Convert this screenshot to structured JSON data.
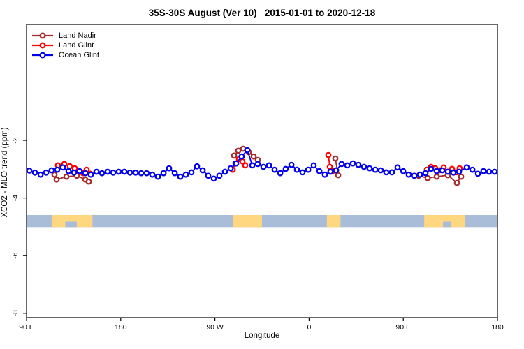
{
  "chart_data": {
    "type": "line",
    "title": "35S-30S August (Ver 10)   2015-01-01 to 2020-12-18",
    "xlabel": "Longitude",
    "ylabel": "XCO2 - MLO trend (ppm)",
    "marker": "open-circle",
    "x_axis": {
      "range": [
        0,
        450
      ],
      "note": "axis position in degrees east of 90E; longitude axis wraps around the globe",
      "ticks": [
        {
          "pos": 0,
          "label": "90 E"
        },
        {
          "pos": 90,
          "label": "180"
        },
        {
          "pos": 180,
          "label": "90 W"
        },
        {
          "pos": 270,
          "label": "0"
        },
        {
          "pos": 360,
          "label": "90 E"
        },
        {
          "pos": 450,
          "label": "180"
        }
      ]
    },
    "y_axis": {
      "range": [
        -8.15,
        2.02
      ],
      "ticks": [
        -2,
        -4,
        -6,
        -8
      ]
    },
    "series": [
      {
        "name": "Land Nadir",
        "color": "#A52A2A",
        "segments": [
          [
            [
              26.7,
              -3.19
            ],
            [
              28.7,
              -3.36
            ],
            [
              38.1,
              -3.26
            ],
            [
              48.1,
              -3.23
            ],
            [
              56.1,
              -3.36
            ],
            [
              59.4,
              -3.43
            ]
          ],
          [
            [
              198.3,
              -2.53
            ],
            [
              202.3,
              -2.36
            ],
            [
              207.0,
              -2.29
            ],
            [
              212.3,
              -2.41
            ],
            [
              217.0,
              -2.56
            ],
            [
              221.0,
              -2.68
            ]
          ],
          [
            [
              295.1,
              -2.63
            ],
            [
              297.8,
              -3.21
            ]
          ],
          [
            [
              374.6,
              -3.23
            ],
            [
              383.3,
              -3.31
            ],
            [
              392.0,
              -3.26
            ],
            [
              402.6,
              -3.21
            ],
            [
              411.3,
              -3.48
            ],
            [
              415.3,
              -3.26
            ]
          ]
        ]
      },
      {
        "name": "Land Glint",
        "color": "#FF0000",
        "segments": [
          [
            [
              30.0,
              -2.87
            ],
            [
              36.1,
              -2.82
            ],
            [
              41.4,
              -2.9
            ],
            [
              46.1,
              -2.97
            ],
            [
              50.1,
              -3.09
            ],
            [
              54.1,
              -3.14
            ],
            [
              57.4,
              -3.02
            ],
            [
              60.8,
              -3.16
            ]
          ],
          [
            [
              197.0,
              -3.02
            ],
            [
              199.6,
              -2.8
            ],
            [
              203.0,
              -2.65
            ],
            [
              206.3,
              -2.73
            ],
            [
              209.0,
              -2.87
            ]
          ],
          [
            [
              288.4,
              -2.51
            ],
            [
              289.8,
              -2.92
            ],
            [
              292.4,
              -3.07
            ]
          ],
          [
            [
              382.6,
              -3.02
            ],
            [
              386.6,
              -2.92
            ],
            [
              390.6,
              -2.97
            ],
            [
              394.6,
              -3.04
            ],
            [
              398.6,
              -2.94
            ],
            [
              402.6,
              -3.09
            ],
            [
              406.6,
              -2.99
            ],
            [
              410.6,
              -3.11
            ],
            [
              413.9,
              -2.97
            ]
          ]
        ]
      },
      {
        "name": "Ocean Glint",
        "color": "#0000EE",
        "segments": [
          [
            [
              2.7,
              -3.05
            ],
            [
              8.0,
              -3.12
            ],
            [
              13.4,
              -3.19
            ],
            [
              18.7,
              -3.12
            ],
            [
              24.0,
              -3.04
            ],
            [
              29.4,
              -3.02
            ],
            [
              34.7,
              -2.94
            ],
            [
              40.1,
              -3.07
            ],
            [
              45.4,
              -3.12
            ],
            [
              50.7,
              -3.07
            ],
            [
              56.1,
              -3.14
            ],
            [
              61.4,
              -3.19
            ],
            [
              66.8,
              -3.09
            ],
            [
              72.1,
              -3.14
            ],
            [
              77.5,
              -3.09
            ],
            [
              82.8,
              -3.12
            ],
            [
              88.1,
              -3.09
            ],
            [
              93.5,
              -3.09
            ],
            [
              98.8,
              -3.12
            ],
            [
              104.2,
              -3.12
            ],
            [
              109.5,
              -3.14
            ],
            [
              114.8,
              -3.14
            ],
            [
              120.2,
              -3.19
            ],
            [
              125.5,
              -3.26
            ],
            [
              130.9,
              -3.14
            ],
            [
              136.2,
              -2.97
            ],
            [
              141.6,
              -3.14
            ],
            [
              146.9,
              -3.26
            ],
            [
              152.2,
              -3.19
            ],
            [
              157.6,
              -3.11
            ],
            [
              162.9,
              -2.9
            ],
            [
              168.3,
              -3.04
            ],
            [
              173.6,
              -3.23
            ],
            [
              178.9,
              -3.33
            ],
            [
              184.3,
              -3.23
            ],
            [
              189.6,
              -3.09
            ],
            [
              195.0,
              -2.97
            ],
            [
              200.3,
              -2.8
            ],
            [
              205.6,
              -2.56
            ],
            [
              211.0,
              -2.34
            ],
            [
              215.7,
              -2.87
            ],
            [
              221.0,
              -2.82
            ],
            [
              226.4,
              -2.92
            ],
            [
              231.7,
              -2.87
            ],
            [
              237.0,
              -3.02
            ],
            [
              242.4,
              -3.14
            ],
            [
              247.7,
              -2.99
            ],
            [
              253.1,
              -2.85
            ],
            [
              258.4,
              -3.02
            ],
            [
              263.7,
              -3.11
            ],
            [
              269.1,
              -3.02
            ],
            [
              274.4,
              -2.87
            ],
            [
              279.8,
              -3.07
            ],
            [
              285.1,
              -3.19
            ],
            [
              290.4,
              -3.09
            ],
            [
              295.8,
              -3.04
            ],
            [
              301.1,
              -2.82
            ],
            [
              306.5,
              -2.87
            ],
            [
              311.8,
              -2.8
            ],
            [
              317.1,
              -2.85
            ],
            [
              322.5,
              -2.92
            ],
            [
              327.8,
              -2.97
            ],
            [
              333.2,
              -3.02
            ],
            [
              338.5,
              -3.04
            ],
            [
              343.8,
              -3.11
            ],
            [
              349.2,
              -3.11
            ],
            [
              354.5,
              -2.94
            ],
            [
              359.9,
              -3.07
            ],
            [
              365.2,
              -3.19
            ],
            [
              370.5,
              -3.23
            ],
            [
              375.9,
              -3.19
            ],
            [
              381.2,
              -3.14
            ],
            [
              386.6,
              -2.99
            ],
            [
              391.9,
              -3.07
            ],
            [
              397.2,
              -3.04
            ],
            [
              402.6,
              -3.09
            ],
            [
              407.9,
              -3.12
            ],
            [
              413.3,
              -3.09
            ],
            [
              420.6,
              -2.94
            ],
            [
              426.0,
              -3.02
            ],
            [
              431.3,
              -3.16
            ],
            [
              436.6,
              -3.07
            ],
            [
              442.0,
              -3.09
            ],
            [
              447.3,
              -3.09
            ]
          ]
        ]
      }
    ],
    "map_strip": {
      "y_top": -4.59,
      "y_bottom": -5.01,
      "ocean_color": "#AABDD8",
      "land_color": "#FFD780",
      "land_patches": [
        {
          "from": 24,
          "to": 63,
          "notches": [
            {
              "from": 37,
              "to": 48
            }
          ]
        },
        {
          "from": 197,
          "to": 225,
          "notches": []
        },
        {
          "from": 287,
          "to": 300,
          "notches": []
        },
        {
          "from": 380,
          "to": 419,
          "notches": [
            {
              "from": 398,
              "to": 406
            }
          ]
        }
      ]
    },
    "legend_position": "top-left"
  }
}
